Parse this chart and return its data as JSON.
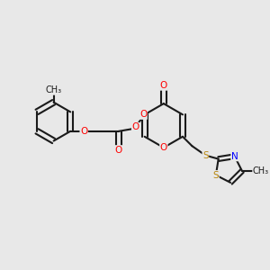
{
  "bg_color": "#e8e8e8",
  "bond_color": "#1a1a1a",
  "bond_width": 1.5,
  "atom_colors": {
    "O": "#ff0000",
    "N": "#0000ff",
    "S": "#b8860b",
    "C": "#1a1a1a"
  },
  "font_size": 7.5
}
